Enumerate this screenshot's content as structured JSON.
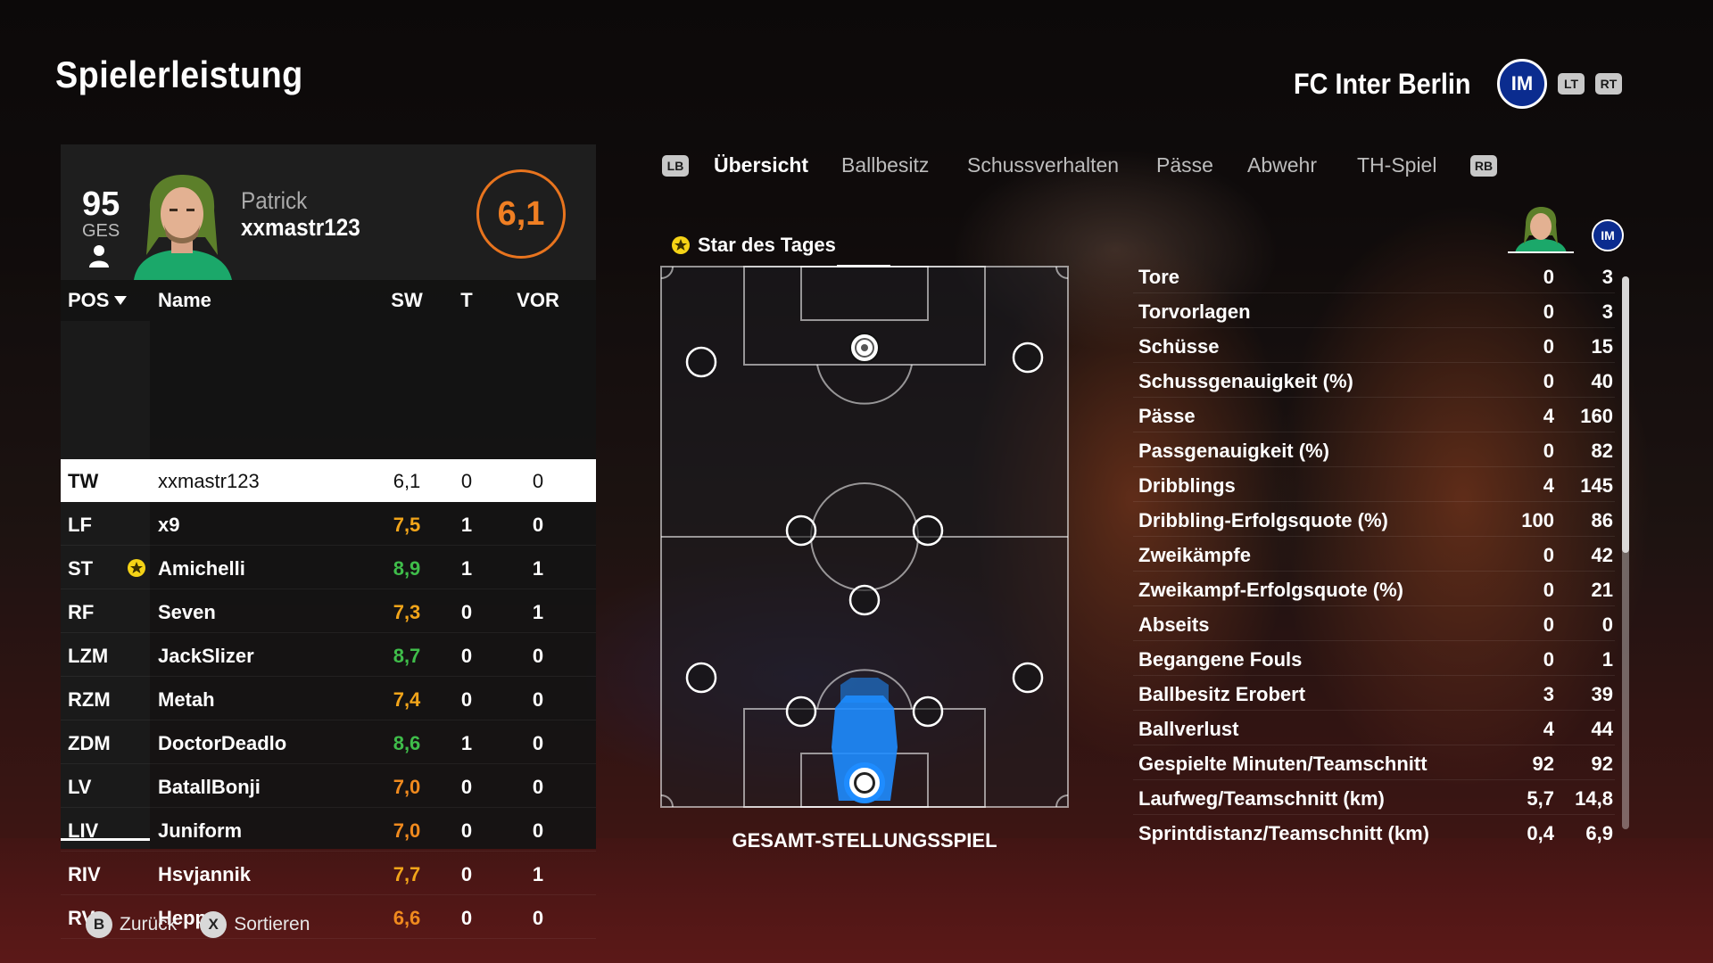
{
  "page": {
    "title": "Spielerleistung"
  },
  "team": {
    "name": "FC Inter Berlin",
    "crest_text": "IM"
  },
  "buttons": {
    "lt": "LT",
    "rt": "RT",
    "lb": "LB",
    "rb": "RB"
  },
  "player": {
    "overall": "95",
    "overall_label": "GES",
    "first_name": "Patrick",
    "gamer_tag": "xxmastr123",
    "rating": "6,1"
  },
  "table": {
    "headers": {
      "pos": "POS",
      "name": "Name",
      "sw": "SW",
      "t": "T",
      "vor": "VOR"
    },
    "rows": [
      {
        "pos": "TW",
        "name": "xxmastr123",
        "sw": "6,1",
        "t": "0",
        "vor": "0",
        "color": "#111111"
      },
      {
        "pos": "LF",
        "name": "x9",
        "sw": "7,5",
        "t": "1",
        "vor": "0",
        "color": "#f2a51a"
      },
      {
        "pos": "ST",
        "name": "Amichelli",
        "sw": "8,9",
        "t": "1",
        "vor": "1",
        "color": "#3fbd4a"
      },
      {
        "pos": "RF",
        "name": "Seven",
        "sw": "7,3",
        "t": "0",
        "vor": "1",
        "color": "#f2a51a"
      },
      {
        "pos": "LZM",
        "name": "JackSlizer",
        "sw": "8,7",
        "t": "0",
        "vor": "0",
        "color": "#3fbd4a"
      },
      {
        "pos": "RZM",
        "name": "Metah",
        "sw": "7,4",
        "t": "0",
        "vor": "0",
        "color": "#f2a51a"
      },
      {
        "pos": "ZDM",
        "name": "DoctorDeadlo",
        "sw": "8,6",
        "t": "1",
        "vor": "0",
        "color": "#3fbd4a"
      },
      {
        "pos": "LV",
        "name": "BatallBonji",
        "sw": "7,0",
        "t": "0",
        "vor": "0",
        "color": "#f08a1e"
      },
      {
        "pos": "LIV",
        "name": "Juniform",
        "sw": "7,0",
        "t": "0",
        "vor": "0",
        "color": "#f08a1e"
      },
      {
        "pos": "RIV",
        "name": "Hsvjannik",
        "sw": "7,7",
        "t": "0",
        "vor": "1",
        "color": "#f2a51a"
      },
      {
        "pos": "RV",
        "name": "Heppy",
        "sw": "6,6",
        "t": "0",
        "vor": "0",
        "color": "#f08a1e"
      }
    ]
  },
  "tabs": [
    "Übersicht",
    "Ballbesitz",
    "Schussverhalten",
    "Pässe",
    "Abwehr",
    "TH-Spiel"
  ],
  "star_of_day": "Star des Tages",
  "heatmap_title": "GESAMT-STELLUNGSSPIEL",
  "stats": [
    {
      "label": "Tore",
      "player": "0",
      "team": "3"
    },
    {
      "label": "Torvorlagen",
      "player": "0",
      "team": "3"
    },
    {
      "label": "Schüsse",
      "player": "0",
      "team": "15"
    },
    {
      "label": "Schussgenauigkeit (%)",
      "player": "0",
      "team": "40"
    },
    {
      "label": "Pässe",
      "player": "4",
      "team": "160"
    },
    {
      "label": "Passgenauigkeit (%)",
      "player": "0",
      "team": "82"
    },
    {
      "label": "Dribblings",
      "player": "4",
      "team": "145"
    },
    {
      "label": "Dribbling-Erfolgsquote (%)",
      "player": "100",
      "team": "86"
    },
    {
      "label": "Zweikämpfe",
      "player": "0",
      "team": "42"
    },
    {
      "label": "Zweikampf-Erfolgsquote (%)",
      "player": "0",
      "team": "21"
    },
    {
      "label": "Abseits",
      "player": "0",
      "team": "0"
    },
    {
      "label": "Begangene Fouls",
      "player": "0",
      "team": "1"
    },
    {
      "label": "Ballbesitz Erobert",
      "player": "3",
      "team": "39"
    },
    {
      "label": "Ballverlust",
      "player": "4",
      "team": "44"
    },
    {
      "label": "Gespielte Minuten/Teamschnitt",
      "player": "92",
      "team": "92"
    },
    {
      "label": "Laufweg/Teamschnitt (km)",
      "player": "5,7",
      "team": "14,8"
    },
    {
      "label": "Sprintdistanz/Teamschnitt (km)",
      "player": "0,4",
      "team": "6,9"
    }
  ],
  "footer": {
    "back_btn": "B",
    "back_label": "Zurück",
    "sort_btn": "X",
    "sort_label": "Sortieren"
  },
  "colors": {
    "accent": "#e8741e",
    "good": "#3fbd4a",
    "ok": "#f2a51a",
    "heat": "#1e8cff"
  },
  "icons": {
    "star": "star-of-day-icon",
    "user": "user-icon",
    "sort": "chevron-down-icon"
  }
}
